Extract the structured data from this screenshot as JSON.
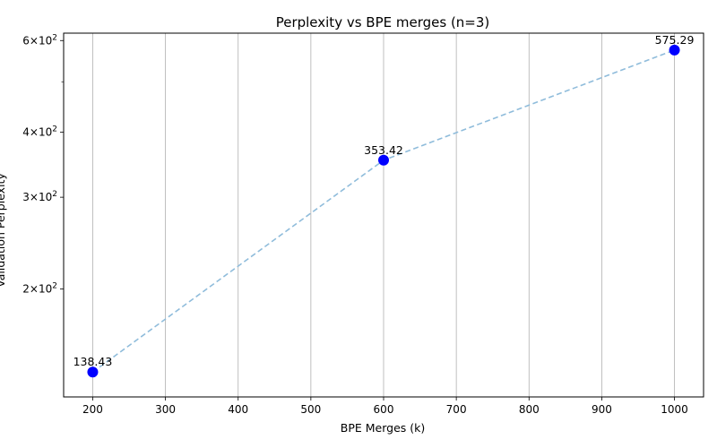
{
  "chart_data": {
    "type": "scatter",
    "title": "Perplexity vs BPE merges (n=3)",
    "xlabel": "BPE Merges (k)",
    "ylabel": "Validation Perplexity",
    "x": [
      200,
      600,
      1000
    ],
    "y": [
      138.43,
      353.42,
      575.29
    ],
    "data_labels": [
      "138.43",
      "353.42",
      "575.29"
    ],
    "xlim": [
      160,
      1040
    ],
    "ylim": [
      124,
      620
    ],
    "y_scale": "log",
    "x_ticks": [
      200,
      300,
      400,
      500,
      600,
      700,
      800,
      900,
      1000
    ],
    "x_tick_labels": [
      "200",
      "300",
      "400",
      "500",
      "600",
      "700",
      "800",
      "900",
      "1000"
    ],
    "y_major_ticks": [
      {
        "value": 200,
        "base": "2",
        "exp": "2"
      },
      {
        "value": 300,
        "base": "3",
        "exp": "2"
      },
      {
        "value": 400,
        "base": "4",
        "exp": "2"
      },
      {
        "value": 600,
        "base": "6",
        "exp": "2"
      }
    ],
    "y_minor_ticks": [
      500
    ],
    "tick_label_sep": "×10",
    "grid": "x-major",
    "marker_color": "#0000ff",
    "line_color": "#8fbcdb",
    "line_style": "dashed"
  }
}
